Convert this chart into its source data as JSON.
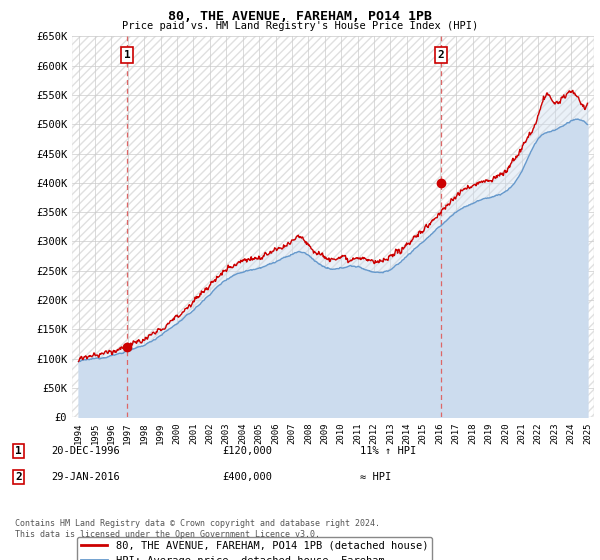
{
  "title": "80, THE AVENUE, FAREHAM, PO14 1PB",
  "subtitle": "Price paid vs. HM Land Registry's House Price Index (HPI)",
  "ylim": [
    0,
    650000
  ],
  "ytick_values": [
    0,
    50000,
    100000,
    150000,
    200000,
    250000,
    300000,
    350000,
    400000,
    450000,
    500000,
    550000,
    600000,
    650000
  ],
  "xlim_start": 1993.6,
  "xlim_end": 2025.4,
  "sale1_x": 1996.97,
  "sale1_y": 120000,
  "sale2_x": 2016.08,
  "sale2_y": 400000,
  "sale_color": "#cc0000",
  "hpi_color": "#6699cc",
  "hpi_fill_color": "#ccdcee",
  "dashed_line_color": "#dd6666",
  "legend_label_red": "80, THE AVENUE, FAREHAM, PO14 1PB (detached house)",
  "legend_label_blue": "HPI: Average price, detached house, Fareham",
  "note1_date": "20-DEC-1996",
  "note1_price": "£120,000",
  "note1_hpi": "11% ↑ HPI",
  "note2_date": "29-JAN-2016",
  "note2_price": "£400,000",
  "note2_hpi": "≈ HPI",
  "footer": "Contains HM Land Registry data © Crown copyright and database right 2024.\nThis data is licensed under the Open Government Licence v3.0.",
  "background_color": "#ffffff",
  "grid_color": "#cccccc"
}
